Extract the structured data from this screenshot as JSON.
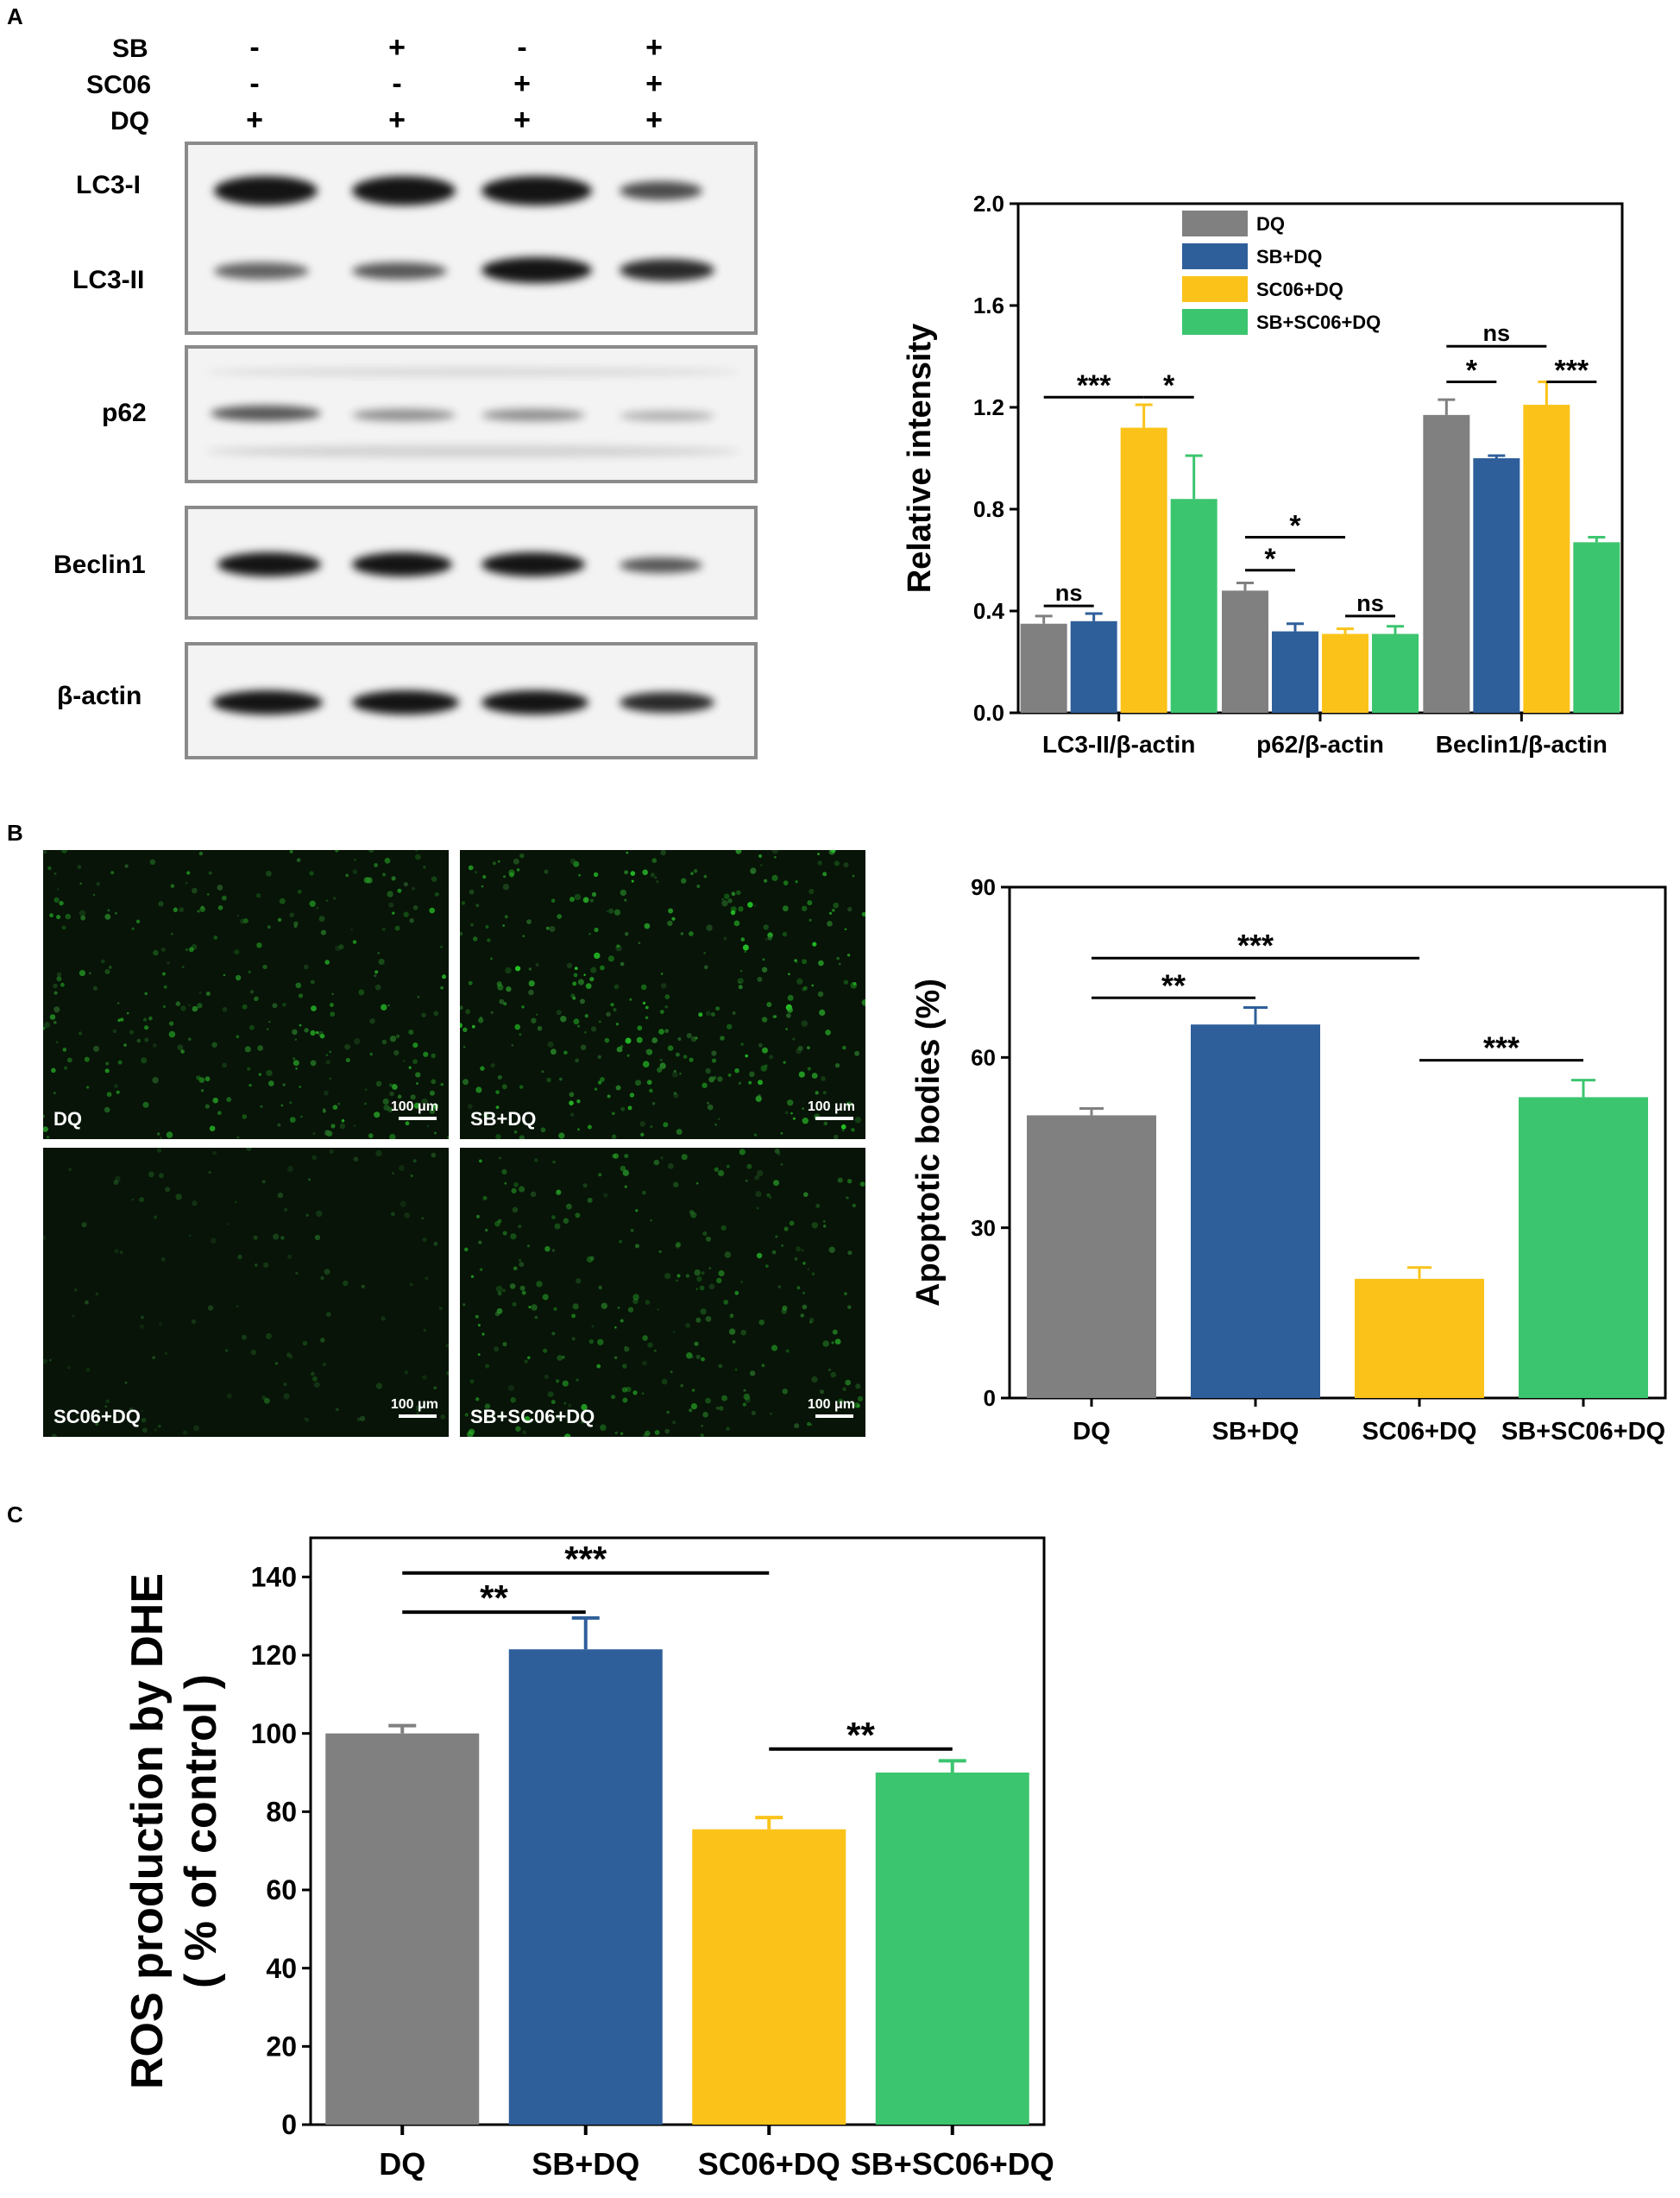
{
  "panels": {
    "a": "A",
    "b": "B",
    "c": "C"
  },
  "colors": {
    "DQ": "#808080",
    "SB+DQ": "#2f5f9a",
    "SC06+DQ": "#fbc31a",
    "SB+SC06+DQ": "#3cc56f"
  },
  "western_blot": {
    "treatments": [
      {
        "label": "SB",
        "signs": [
          "-",
          "+",
          "-",
          "+"
        ]
      },
      {
        "label": "SC06",
        "signs": [
          "-",
          "-",
          "+",
          "+"
        ]
      },
      {
        "label": "DQ",
        "signs": [
          "+",
          "+",
          "+",
          "+"
        ]
      }
    ],
    "proteins": [
      "LC3-I",
      "LC3-II",
      "p62",
      "Beclin1",
      "β-actin"
    ]
  },
  "micrographs": [
    {
      "label": "DQ",
      "scale": "100 μm",
      "intensity": 0.75
    },
    {
      "label": "SB+DQ",
      "scale": "100 μm",
      "intensity": 0.9
    },
    {
      "label": "SC06+DQ",
      "scale": "100 μm",
      "intensity": 0.3
    },
    {
      "label": "SB+SC06+DQ",
      "scale": "100 μm",
      "intensity": 0.7
    }
  ],
  "chart_data": [
    {
      "id": "A",
      "type": "bar",
      "categories": [
        "LC3-II/β-actin",
        "p62/β-actin",
        "Beclin1/β-actin"
      ],
      "series": [
        {
          "name": "DQ",
          "values": [
            0.35,
            0.48,
            1.17
          ],
          "errors": [
            0.03,
            0.03,
            0.06
          ]
        },
        {
          "name": "SB+DQ",
          "values": [
            0.36,
            0.32,
            1.0
          ],
          "errors": [
            0.03,
            0.03,
            0.01
          ]
        },
        {
          "name": "SC06+DQ",
          "values": [
            1.12,
            0.31,
            1.21
          ],
          "errors": [
            0.09,
            0.02,
            0.09
          ]
        },
        {
          "name": "SB+SC06+DQ",
          "values": [
            0.84,
            0.31,
            0.67
          ],
          "errors": [
            0.17,
            0.03,
            0.02
          ]
        }
      ],
      "ylabel": "Relative intensity",
      "ylim": [
        0,
        2.0
      ],
      "yticks": [
        "0.0",
        "0.4",
        "0.8",
        "1.2",
        "1.6",
        "2.0"
      ],
      "legend_position": "top",
      "annotations": [
        {
          "cat": 0,
          "from": 0,
          "to": 1,
          "label": "ns",
          "y": 0.42
        },
        {
          "cat": 0,
          "from": 0,
          "to": 2,
          "label": "***",
          "y": 1.24
        },
        {
          "cat": 0,
          "from": 2,
          "to": 3,
          "label": "*",
          "y": 1.24
        },
        {
          "cat": 1,
          "from": 0,
          "to": 1,
          "label": "*",
          "y": 0.56
        },
        {
          "cat": 1,
          "from": 0,
          "to": 2,
          "label": "*",
          "y": 0.69
        },
        {
          "cat": 1,
          "from": 2,
          "to": 3,
          "label": "ns",
          "y": 0.38
        },
        {
          "cat": 2,
          "from": 0,
          "to": 1,
          "label": "*",
          "y": 1.3
        },
        {
          "cat": 2,
          "from": 0,
          "to": 2,
          "label": "ns",
          "y": 1.44
        },
        {
          "cat": 2,
          "from": 2,
          "to": 3,
          "label": "***",
          "y": 1.3
        }
      ]
    },
    {
      "id": "B",
      "type": "bar",
      "categories": [
        "DQ",
        "SB+DQ",
        "SC06+DQ",
        "SB+SC06+DQ"
      ],
      "values": [
        49.8,
        65.8,
        21.0,
        53.0
      ],
      "errors": [
        1.2,
        3.0,
        2.0,
        3.0
      ],
      "ylabel": "Apoptotic bodies (%)",
      "ylim": [
        0,
        90
      ],
      "yticks": [
        "0",
        "30",
        "60",
        "90"
      ],
      "annotations": [
        {
          "from": 0,
          "to": 1,
          "label": "**",
          "y": 70.5
        },
        {
          "from": 0,
          "to": 2,
          "label": "***",
          "y": 77.5
        },
        {
          "from": 2,
          "to": 3,
          "label": "***",
          "y": 59.5
        }
      ]
    },
    {
      "id": "C",
      "type": "bar",
      "categories": [
        "DQ",
        "SB+DQ",
        "SC06+DQ",
        "SB+SC06+DQ"
      ],
      "values": [
        100,
        121.5,
        75.5,
        90
      ],
      "errors": [
        2,
        8,
        3,
        3
      ],
      "ylabel": [
        "ROS production by DHE",
        "( % of control )"
      ],
      "ylim": [
        0,
        150
      ],
      "yticks": [
        "0",
        "20",
        "40",
        "60",
        "80",
        "100",
        "120",
        "140"
      ],
      "annotations": [
        {
          "from": 0,
          "to": 1,
          "label": "**",
          "y": 131
        },
        {
          "from": 0,
          "to": 2,
          "label": "***",
          "y": 141
        },
        {
          "from": 2,
          "to": 3,
          "label": "**",
          "y": 96
        }
      ]
    }
  ]
}
